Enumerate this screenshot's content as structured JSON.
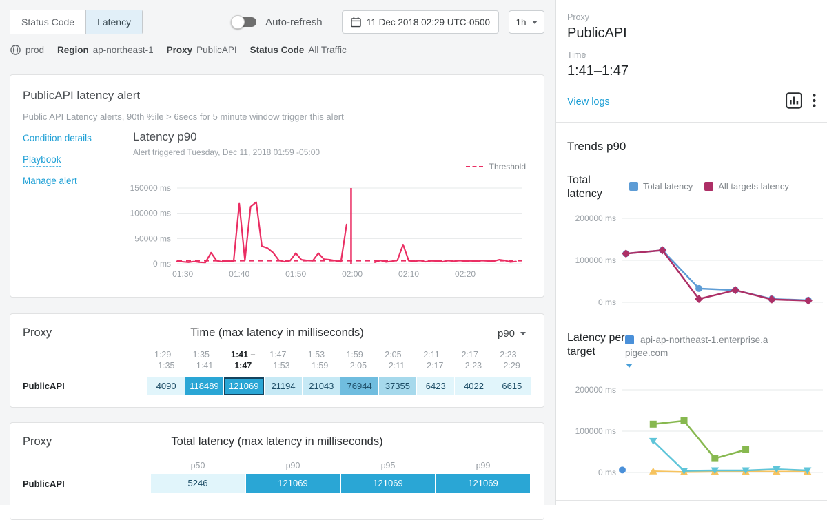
{
  "colors": {
    "accent_pink": "#ea2e63",
    "series_blue": "#5d9cd5",
    "series_magenta": "#ad2f66",
    "series_green": "#87b84f",
    "series_cyan": "#5fc5d9",
    "series_orange": "#f6c35f",
    "series_dot_blue": "#4a90d9",
    "link_blue": "#1d9fd5",
    "heat_palette": [
      "#e1f5fb",
      "#c6e9f5",
      "#a6d9ec",
      "#70bddf",
      "#2aa6d5"
    ],
    "cell_text_dark": "#1d4d66",
    "cell_text_light": "#ffffff",
    "grid": "#e6e8ea"
  },
  "toolbar": {
    "tabs": [
      "Status Code",
      "Latency"
    ],
    "active_tab": "Latency",
    "auto_refresh_label": "Auto-refresh",
    "auto_refresh_on": false,
    "datetime": "11 Dec 2018 02:29 UTC-0500",
    "range": "1h"
  },
  "breadcrumb": {
    "environment": "prod",
    "items": [
      {
        "label": "Region",
        "value": "ap-northeast-1"
      },
      {
        "label": "Proxy",
        "value": "PublicAPI"
      },
      {
        "label": "Status Code",
        "value": "All Traffic"
      }
    ]
  },
  "alert_panel": {
    "title": "PublicAPI latency alert",
    "description": "Public API Latency alerts, 90th %ile > 6secs for 5 minute window trigger this alert",
    "links": [
      "Condition details",
      "Playbook",
      "Manage alert"
    ],
    "threshold_label": "Threshold"
  },
  "chart_data": [
    {
      "id": "alert-latency-p90",
      "type": "line",
      "title": "Latency p90",
      "subtitle": "Alert triggered Tuesday, Dec 11, 2018 01:59 -05:00",
      "ylim": [
        0,
        150000
      ],
      "yticks": [
        {
          "v": 0,
          "label": "0 ms"
        },
        {
          "v": 50000,
          "label": "50000 ms"
        },
        {
          "v": 100000,
          "label": "100000 ms"
        },
        {
          "v": 150000,
          "label": "150000 ms"
        }
      ],
      "xlim": [
        0,
        61
      ],
      "x_unit": "minutes after 01:29",
      "xticks": [
        {
          "v": 1,
          "label": "01:30"
        },
        {
          "v": 11,
          "label": "01:40"
        },
        {
          "v": 21,
          "label": "01:50"
        },
        {
          "v": 31,
          "label": "02:00"
        },
        {
          "v": 41,
          "label": "02:10"
        },
        {
          "v": 51,
          "label": "02:20"
        }
      ],
      "threshold": 6000,
      "threshold_color": "#ea2e63",
      "alert_marker_x": 30.8,
      "grid": true,
      "legend_position": "top-right",
      "series": [
        {
          "name": "Latency p90",
          "color": "#ea2e63",
          "width": 2.2,
          "marker": "none",
          "segments": [
            [
              [
                0,
                5000
              ],
              [
                1,
                4000
              ],
              [
                2,
                3000
              ],
              [
                3,
                4500
              ],
              [
                4,
                3000
              ],
              [
                5,
                2500
              ],
              [
                6,
                22000
              ],
              [
                7,
                6000
              ],
              [
                8,
                4000
              ],
              [
                9,
                5500
              ],
              [
                10,
                5000
              ],
              [
                11,
                119000
              ],
              [
                12,
                7000
              ],
              [
                13,
                113000
              ],
              [
                14,
                122000
              ],
              [
                15,
                35000
              ],
              [
                16,
                31000
              ],
              [
                17,
                22000
              ],
              [
                18,
                7000
              ],
              [
                19,
                4000
              ],
              [
                20,
                6000
              ],
              [
                21,
                21000
              ],
              [
                22,
                8000
              ],
              [
                23,
                6500
              ],
              [
                24,
                6000
              ],
              [
                25,
                21000
              ],
              [
                26,
                9000
              ],
              [
                27,
                8000
              ],
              [
                28,
                6000
              ],
              [
                29,
                4000
              ],
              [
                30,
                78000
              ]
            ],
            [
              [
                35,
                3000
              ],
              [
                36,
                6500
              ],
              [
                37,
                3500
              ],
              [
                38,
                5000
              ],
              [
                39,
                7000
              ],
              [
                40,
                38000
              ],
              [
                41,
                6000
              ],
              [
                42,
                5000
              ],
              [
                43,
                6500
              ],
              [
                44,
                4000
              ],
              [
                45,
                6000
              ],
              [
                46,
                5500
              ],
              [
                47,
                4000
              ],
              [
                48,
                6500
              ],
              [
                49,
                5000
              ],
              [
                50,
                6500
              ],
              [
                51,
                5000
              ],
              [
                52,
                6000
              ],
              [
                53,
                4500
              ],
              [
                54,
                6500
              ],
              [
                55,
                5500
              ],
              [
                56,
                5000
              ],
              [
                57,
                8000
              ],
              [
                58,
                6500
              ],
              [
                59,
                3500
              ],
              [
                60,
                4500
              ]
            ]
          ]
        }
      ]
    },
    {
      "id": "trends-total-latency",
      "type": "line",
      "title": "Total latency",
      "ylim": [
        0,
        200000
      ],
      "yticks": [
        {
          "v": 0,
          "label": "0 ms"
        },
        {
          "v": 100000,
          "label": "100000 ms"
        },
        {
          "v": 200000,
          "label": "200000 ms"
        }
      ],
      "xlim": [
        -0.1,
        5.4
      ],
      "grid": true,
      "series": [
        {
          "name": "Total latency",
          "color": "#5d9cd5",
          "width": 2.5,
          "marker": "circle",
          "segments": [
            [
              [
                0,
                116000
              ],
              [
                1,
                124000
              ],
              [
                2,
                33000
              ],
              [
                3,
                29000
              ],
              [
                4,
                8000
              ],
              [
                5,
                5000
              ]
            ]
          ]
        },
        {
          "name": "All targets latency",
          "color": "#ad2f66",
          "width": 2.5,
          "marker": "diamond",
          "segments": [
            [
              [
                0,
                116000
              ],
              [
                1,
                124000
              ],
              [
                2,
                8000
              ],
              [
                3,
                29000
              ],
              [
                4,
                7000
              ],
              [
                5,
                4000
              ]
            ]
          ]
        }
      ]
    },
    {
      "id": "latency-per-target",
      "type": "line",
      "title": "Latency per target",
      "legend": "api-ap-northeast-1.enterprise.apigee.com",
      "ylim": [
        0,
        200000
      ],
      "yticks": [
        {
          "v": 0,
          "label": "0 ms"
        },
        {
          "v": 100000,
          "label": "100000 ms"
        },
        {
          "v": 200000,
          "label": "200000 ms"
        }
      ],
      "xlim": [
        0,
        6.5
      ],
      "grid": true,
      "series": [
        {
          "color": "#f6c35f",
          "width": 2.5,
          "marker": "triangle-up",
          "segments": [
            [
              [
                1,
                3000
              ],
              [
                2,
                1000
              ],
              [
                3,
                2000
              ],
              [
                4,
                2000
              ],
              [
                5,
                2000
              ],
              [
                6,
                2000
              ]
            ]
          ]
        },
        {
          "color": "#5fc5d9",
          "width": 2.5,
          "marker": "triangle-down",
          "segments": [
            [
              [
                1,
                76000
              ],
              [
                2,
                4000
              ],
              [
                3,
                5000
              ],
              [
                4,
                5000
              ],
              [
                5,
                8000
              ],
              [
                6,
                5000
              ]
            ]
          ]
        },
        {
          "color": "#87b84f",
          "width": 2.5,
          "marker": "square",
          "segments": [
            [
              [
                1,
                117000
              ],
              [
                2,
                125000
              ],
              [
                3,
                34000
              ],
              [
                4,
                55000
              ]
            ]
          ]
        },
        {
          "color": "#4a90d9",
          "width": 2.5,
          "marker": "circle",
          "segments": [
            [
              [
                0,
                6000
              ]
            ]
          ]
        }
      ]
    }
  ],
  "time_table": {
    "proxy_header": "Proxy",
    "title": "Time (max latency in milliseconds)",
    "percentile_selector": "p90",
    "row_label": "PublicAPI",
    "selected_index": 2,
    "columns": [
      {
        "from": "1:29 –",
        "to": "1:35"
      },
      {
        "from": "1:35 –",
        "to": "1:41"
      },
      {
        "from": "1:41 –",
        "to": "1:47"
      },
      {
        "from": "1:47 –",
        "to": "1:53"
      },
      {
        "from": "1:53 –",
        "to": "1:59"
      },
      {
        "from": "1:59 –",
        "to": "2:05"
      },
      {
        "from": "2:05 –",
        "to": "2:11"
      },
      {
        "from": "2:11 –",
        "to": "2:17"
      },
      {
        "from": "2:17 –",
        "to": "2:23"
      },
      {
        "from": "2:23 –",
        "to": "2:29"
      }
    ],
    "values": [
      "4090",
      "118489",
      "121069",
      "21194",
      "21043",
      "76944",
      "37355",
      "6423",
      "4022",
      "6615"
    ],
    "levels": [
      0,
      4,
      4,
      1,
      1,
      3,
      2,
      0,
      0,
      0
    ]
  },
  "total_table": {
    "proxy_header": "Proxy",
    "title": "Total latency (max latency in milliseconds)",
    "row_label": "PublicAPI",
    "columns": [
      "p50",
      "p90",
      "p95",
      "p99"
    ],
    "values": [
      "5246",
      "121069",
      "121069",
      "121069"
    ],
    "levels": [
      0,
      4,
      4,
      4
    ]
  },
  "sidebar": {
    "proxy_label": "Proxy",
    "proxy_value": "PublicAPI",
    "time_label": "Time",
    "time_value": "1:41–1:47",
    "view_logs_label": "View logs",
    "trends_title": "Trends p90",
    "total_latency_label": "Total latency",
    "total_legend": [
      {
        "label": "Total latency",
        "color": "#5d9cd5"
      },
      {
        "label": "All targets latency",
        "color": "#ad2f66"
      }
    ],
    "per_target_label": "Latency per target",
    "target_legend": {
      "label": "api-ap-northeast-1.enterprise.apigee.com",
      "color": "#4a90d9"
    }
  }
}
